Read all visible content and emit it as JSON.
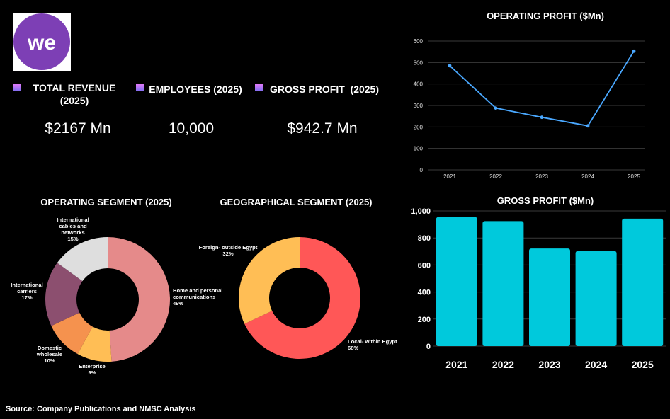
{
  "logo_text": "we",
  "kpis": [
    {
      "label": "TOTAL REVENUE\n(2025)",
      "value": "$2167 Mn"
    },
    {
      "label": "EMPLOYEES (2025)",
      "value": "10,000"
    },
    {
      "label": "GROSS PROFIT  (2025)",
      "value": "$942.7 Mn"
    }
  ],
  "source": "Source: Company Publications and NMSC Analysis",
  "chart_data": [
    {
      "type": "line",
      "title": "OPERATING PROFIT ($Mn)",
      "x": [
        "2021",
        "2022",
        "2023",
        "2024",
        "2025"
      ],
      "values": [
        485,
        288,
        245,
        205,
        553
      ],
      "ylim": [
        0,
        600
      ],
      "yticks": [
        "0",
        "100",
        "200",
        "300",
        "400",
        "500",
        "600"
      ],
      "color": "#4aa8ff",
      "grid": true
    },
    {
      "type": "bar",
      "title": "GROSS PROFIT ($Mn)",
      "categories": [
        "2021",
        "2022",
        "2023",
        "2024",
        "2025"
      ],
      "values": [
        955,
        925,
        722,
        703,
        943
      ],
      "ylim": [
        0,
        1000
      ],
      "yticks": [
        "0",
        "200",
        "400",
        "600",
        "800",
        "1,000"
      ],
      "color": "#00c9dc",
      "grid": true
    },
    {
      "type": "pie",
      "title": "OPERATING SEGMENT (2025)",
      "labels": [
        "Home and personal communications",
        "Enterprise",
        "Domestic wholesale",
        "International carriers",
        "International cables and networks"
      ],
      "label_lines": [
        [
          "Home and personal",
          "communications",
          "49%"
        ],
        [
          "Enterprise",
          "9%"
        ],
        [
          "Domestic",
          "wholesale",
          "10%"
        ],
        [
          "International",
          "carriers",
          "17%"
        ],
        [
          "International",
          "cables and",
          "networks",
          "15%"
        ]
      ],
      "values": [
        49,
        9,
        10,
        17,
        15
      ],
      "colors": [
        "#e58a8a",
        "#ffbe55",
        "#f5924e",
        "#8c4f6f",
        "#dedede"
      ]
    },
    {
      "type": "pie",
      "title": "GEOGRAPHICAL SEGMENT (2025)",
      "labels": [
        "Local- within Egypt",
        "Foreign- outside Egypt"
      ],
      "label_lines": [
        [
          "Local- within Egypt",
          "68%"
        ],
        [
          "Foreign- outside Egypt",
          "32%"
        ]
      ],
      "values": [
        68,
        32
      ],
      "colors": [
        "#ff5757",
        "#ffbe55"
      ]
    }
  ]
}
